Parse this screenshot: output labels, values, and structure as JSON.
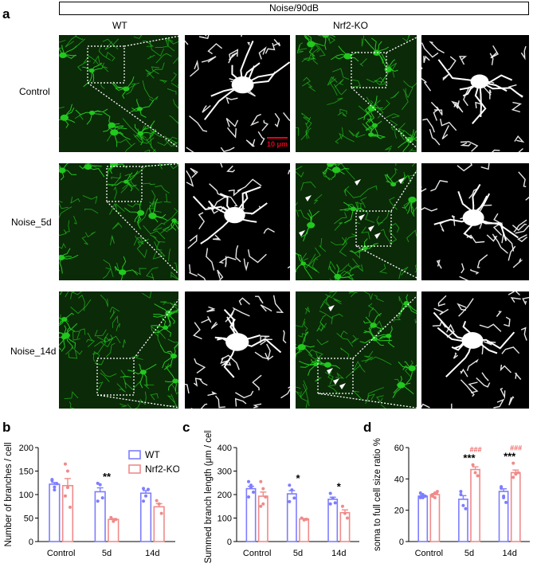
{
  "figure": {
    "panel_a_letter": "a",
    "panel_b_letter": "b",
    "panel_c_letter": "c",
    "panel_d_letter": "d",
    "header": "Noise/90dB",
    "columns": [
      "WT",
      "Nrf2-KO"
    ],
    "rows": [
      "Control",
      "Noise_5d",
      "Noise_14d"
    ],
    "scale_bar_label": "10 μm",
    "scale_bar_color": "#e8001c",
    "microglia_color": "#22c81e"
  },
  "chart_data": [
    {
      "type": "bar",
      "categories": [
        "Control",
        "5d",
        "14d"
      ],
      "series": [
        {
          "name": "WT",
          "color": "#7d7dff",
          "values": [
            122,
            106,
            103
          ]
        },
        {
          "name": "Nrf2-KO",
          "color": "#f08a8a",
          "values": [
            119,
            47,
            74
          ]
        }
      ],
      "points": {
        "WT": [
          [
            130,
            116,
            123,
            132,
            110
          ],
          [
            124,
            121,
            93,
            86
          ],
          [
            113,
            97,
            111,
            86
          ]
        ],
        "Nrf2-KO": [
          [
            165,
            150,
            73,
            97,
            115
          ],
          [
            51,
            43,
            47
          ],
          [
            87,
            80,
            60
          ]
        ]
      },
      "xlabel": "",
      "ylabel": "Number of branches / cell",
      "ylim": [
        0,
        200
      ],
      "yticks": [
        0,
        50,
        100,
        150,
        200
      ],
      "significance": [
        {
          "category": "5d",
          "label": "**"
        }
      ],
      "legend": "top-right"
    },
    {
      "type": "bar",
      "categories": [
        "Control",
        "5d",
        "14d"
      ],
      "series": [
        {
          "name": "WT",
          "color": "#7d7dff",
          "values": [
            225,
            203,
            180
          ]
        },
        {
          "name": "Nrf2-KO",
          "color": "#f08a8a",
          "values": [
            193,
            96,
            123
          ]
        }
      ],
      "points": {
        "WT": [
          [
            255,
            240,
            210,
            190,
            230
          ],
          [
            240,
            220,
            185,
            170
          ],
          [
            205,
            185,
            165,
            160
          ]
        ],
        "Nrf2-KO": [
          [
            255,
            225,
            190,
            150,
            160
          ],
          [
            100,
            92,
            95
          ],
          [
            150,
            120,
            100
          ]
        ]
      },
      "xlabel": "",
      "ylabel": "Summed branch length (μm / cell)",
      "ylim": [
        0,
        400
      ],
      "yticks": [
        0,
        100,
        200,
        300,
        400
      ],
      "significance": [
        {
          "category": "5d",
          "label": "*"
        },
        {
          "category": "14d",
          "label": "*"
        }
      ]
    },
    {
      "type": "bar",
      "categories": [
        "Control",
        "5d",
        "14d"
      ],
      "series": [
        {
          "name": "WT",
          "color": "#7d7dff",
          "values": [
            29,
            27,
            32
          ]
        },
        {
          "name": "Nrf2-KO",
          "color": "#f08a8a",
          "values": [
            30,
            46,
            44
          ]
        }
      ],
      "points": {
        "WT": [
          [
            28,
            30,
            29,
            31,
            28
          ],
          [
            32,
            23,
            21,
            30
          ],
          [
            34,
            29,
            25,
            35,
            28
          ]
        ],
        "Nrf2-KO": [
          [
            29,
            31,
            32,
            30,
            28
          ],
          [
            49,
            44,
            42
          ],
          [
            50,
            43,
            44,
            41
          ]
        ]
      },
      "xlabel": "",
      "ylabel": "soma to full cell size ratio %",
      "ylim": [
        0,
        60
      ],
      "yticks": [
        0,
        20,
        40,
        60
      ],
      "significance": [
        {
          "category": "5d",
          "label": "***",
          "color": "#000000"
        },
        {
          "category": "14d",
          "label": "***",
          "color": "#000000"
        },
        {
          "category": "5d",
          "label": "###",
          "color": "#f06464"
        },
        {
          "category": "14d",
          "label": "###",
          "color": "#f06464"
        }
      ]
    }
  ]
}
